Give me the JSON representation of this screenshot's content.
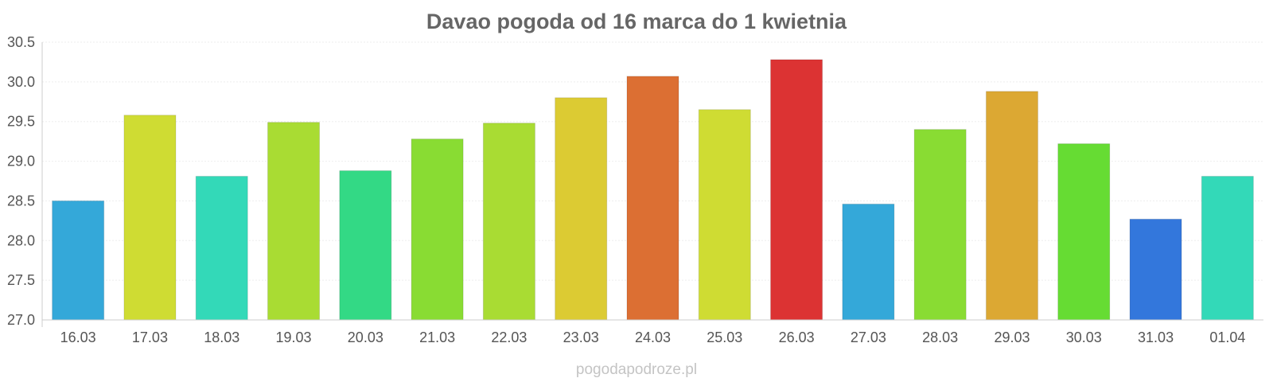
{
  "chart_data": {
    "type": "bar",
    "title": "Davao pogoda od 16 marca do 1 kwietnia",
    "xlabel": "",
    "ylabel": "",
    "categories": [
      "16.03",
      "17.03",
      "18.03",
      "19.03",
      "20.03",
      "21.03",
      "22.03",
      "23.03",
      "24.03",
      "25.03",
      "26.03",
      "27.03",
      "28.03",
      "29.03",
      "30.03",
      "31.03",
      "01.04"
    ],
    "values": [
      28.5,
      29.58,
      28.81,
      29.49,
      28.88,
      29.28,
      29.48,
      29.8,
      30.07,
      29.65,
      30.28,
      28.46,
      29.4,
      29.88,
      29.22,
      28.27,
      28.81
    ],
    "colors": [
      "#34a8d9",
      "#cfdc33",
      "#33d9b8",
      "#a9dc33",
      "#33d985",
      "#89dc33",
      "#a9dc33",
      "#dccb33",
      "#dc6f33",
      "#cfdc33",
      "#dc3333",
      "#34a8d9",
      "#89dc33",
      "#dca833",
      "#66dc33",
      "#3377dc",
      "#33d9b8"
    ],
    "ylim": [
      27.0,
      30.5
    ],
    "yticks": [
      "27.0",
      "27.5",
      "28.0",
      "28.5",
      "29.0",
      "29.5",
      "30.0",
      "30.5"
    ],
    "grid": true,
    "legend": "none"
  },
  "watermark": "pogodapodroze.pl"
}
